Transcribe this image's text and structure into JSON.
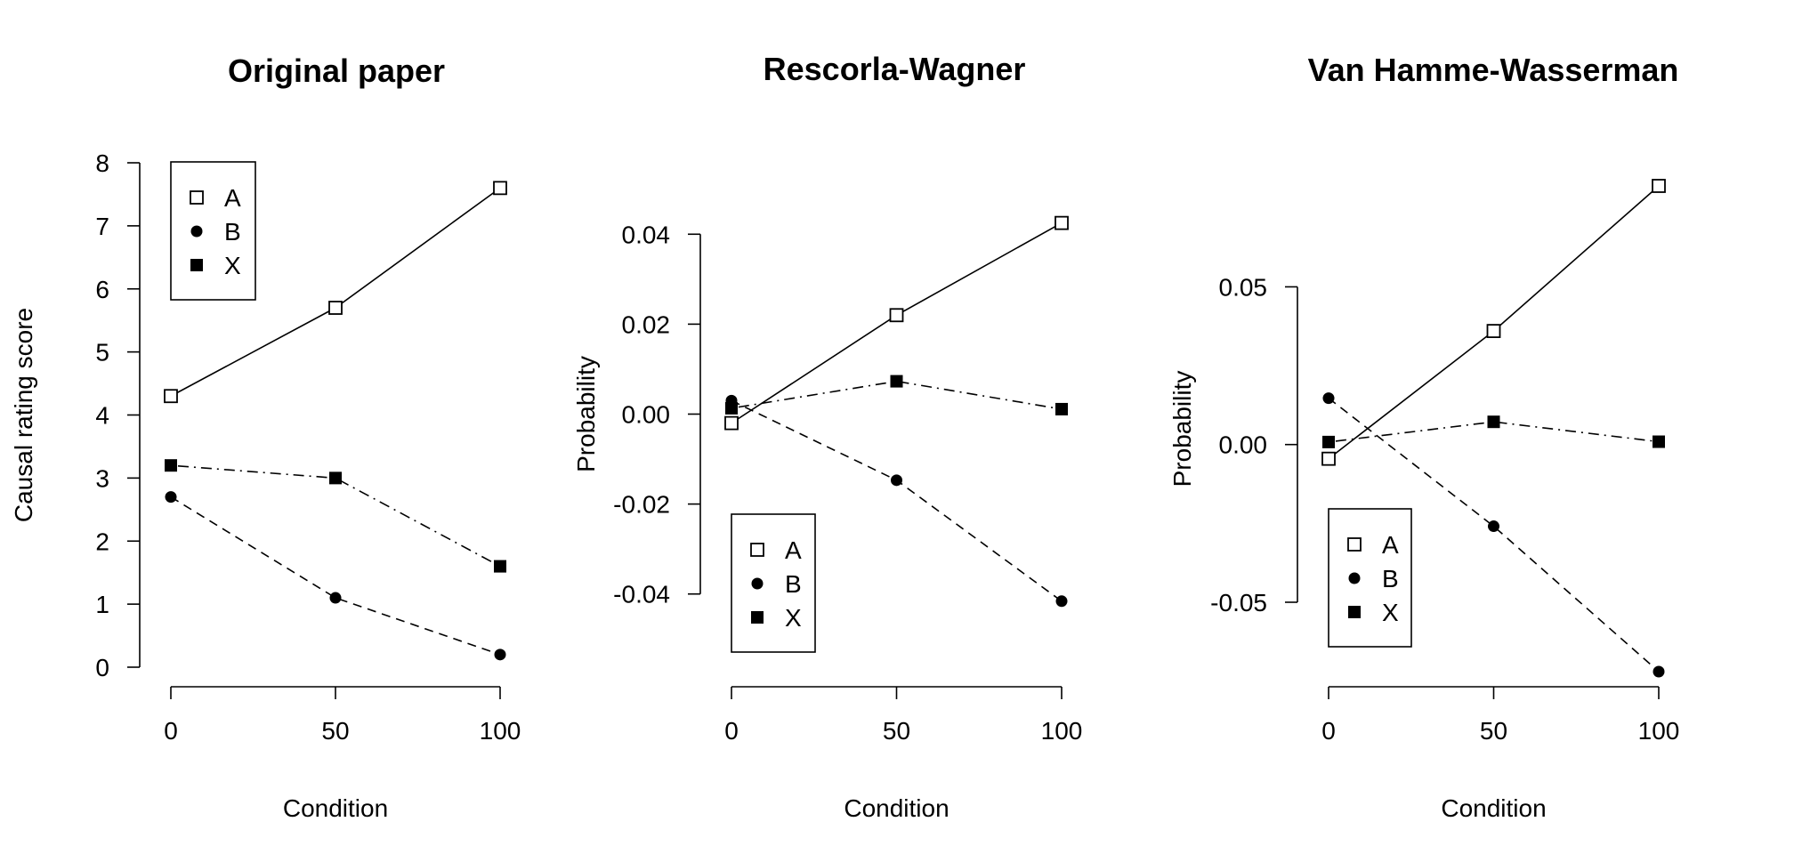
{
  "chart_data": [
    {
      "type": "line",
      "title": "Original paper",
      "xlabel": "Condition",
      "ylabel": "Causal rating score",
      "x": [
        0,
        50,
        100
      ],
      "x_ticks": [
        "0",
        "50",
        "100"
      ],
      "y_ticks": [
        "0",
        "1",
        "2",
        "3",
        "4",
        "5",
        "6",
        "7",
        "8"
      ],
      "y_tick_values": [
        0,
        1,
        2,
        3,
        4,
        5,
        6,
        7,
        8
      ],
      "ylim": [
        0,
        8
      ],
      "legend_position": "top-left",
      "series": [
        {
          "name": "A",
          "marker": "open-square",
          "line": "solid",
          "values": [
            4.3,
            5.7,
            7.6
          ]
        },
        {
          "name": "B",
          "marker": "filled-circle",
          "line": "dashed",
          "values": [
            2.7,
            1.1,
            0.2
          ]
        },
        {
          "name": "X",
          "marker": "filled-square",
          "line": "dot-dash",
          "values": [
            3.2,
            3.0,
            1.6
          ]
        }
      ]
    },
    {
      "type": "line",
      "title": "Rescorla-Wagner",
      "xlabel": "Condition",
      "ylabel": "Probability",
      "x": [
        0,
        50,
        100
      ],
      "x_ticks": [
        "0",
        "50",
        "100"
      ],
      "y_ticks": [
        "-0.04",
        "-0.02",
        "0.00",
        "0.02",
        "0.04"
      ],
      "y_tick_values": [
        -0.04,
        -0.02,
        0.0,
        0.02,
        0.04
      ],
      "ylim": [
        -0.045,
        0.045
      ],
      "legend_position": "bottom-left",
      "series": [
        {
          "name": "A",
          "marker": "open-square",
          "line": "solid",
          "values": [
            -0.002,
            0.022,
            0.0425
          ]
        },
        {
          "name": "B",
          "marker": "filled-circle",
          "line": "dashed",
          "values": [
            0.003,
            -0.0147,
            -0.0416
          ]
        },
        {
          "name": "X",
          "marker": "filled-square",
          "line": "dot-dash",
          "values": [
            0.0013,
            0.0073,
            0.0011
          ]
        }
      ]
    },
    {
      "type": "line",
      "title": "Van Hamme-Wasserman",
      "xlabel": "Condition",
      "ylabel": "Probability",
      "x": [
        0,
        50,
        100
      ],
      "x_ticks": [
        "0",
        "50",
        "100"
      ],
      "y_ticks": [
        "-0.05",
        "0.00",
        "0.05"
      ],
      "y_tick_values": [
        -0.05,
        0.0,
        0.05
      ],
      "ylim": [
        -0.072,
        0.082
      ],
      "legend_position": "bottom-left",
      "series": [
        {
          "name": "A",
          "marker": "open-square",
          "line": "solid",
          "values": [
            -0.0045,
            0.036,
            0.082
          ]
        },
        {
          "name": "B",
          "marker": "filled-circle",
          "line": "dashed",
          "values": [
            0.0147,
            -0.0259,
            -0.072
          ]
        },
        {
          "name": "X",
          "marker": "filled-square",
          "line": "dot-dash",
          "values": [
            0.0008,
            0.0072,
            0.0009
          ]
        }
      ]
    }
  ]
}
